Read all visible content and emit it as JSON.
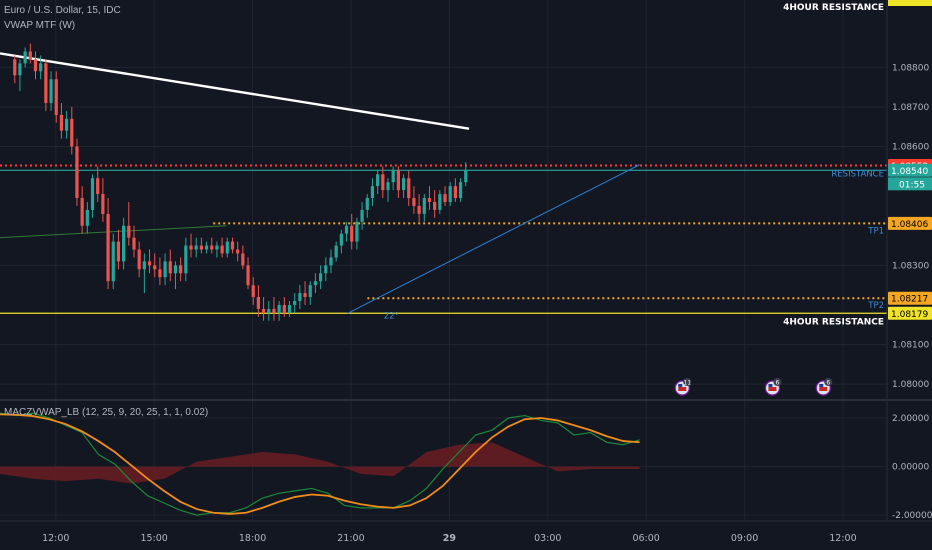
{
  "header": {
    "title": "Euro / U.S. Dollar, 15, IDC",
    "indicator": "VWAP MTF (W)",
    "oscillator": "MACZVWAP_LB (12, 25, 9, 20, 25, 1, 1, 0.02)"
  },
  "colors": {
    "background": "#131722",
    "grid": "#1f2430",
    "up": "#26a69a",
    "down": "#ef5350",
    "text": "#b2b5be",
    "yellow": "#f0e428",
    "orange": "#f5a623",
    "red_level": "#ff3b30",
    "trend_blue": "#2f7fd4"
  },
  "chart_data": [
    {
      "type": "candlestick",
      "title": "Euro / U.S. Dollar, 15, IDC",
      "ylim": [
        1.0796,
        1.0897
      ],
      "y_ticks": [
        1.08,
        1.081,
        1.083,
        1.086,
        1.087,
        1.088
      ],
      "x_ticks": [
        "12:00",
        "15:00",
        "18:00",
        "21:00",
        "29",
        "03:00",
        "06:00",
        "09:00",
        "12:00"
      ],
      "bar_times_hours": [
        10.75,
        24.5
      ],
      "ohlc": [
        [
          1.0882,
          1.0883,
          1.0876,
          1.0878
        ],
        [
          1.0878,
          1.0882,
          1.0874,
          1.0881
        ],
        [
          1.0881,
          1.0885,
          1.088,
          1.0884
        ],
        [
          1.0884,
          1.0886,
          1.0881,
          1.0882
        ],
        [
          1.0882,
          1.0884,
          1.0877,
          1.0879
        ],
        [
          1.0879,
          1.0883,
          1.0877,
          1.0881
        ],
        [
          1.0881,
          1.0882,
          1.0869,
          1.0871
        ],
        [
          1.0871,
          1.0879,
          1.0869,
          1.0877
        ],
        [
          1.0877,
          1.0879,
          1.0866,
          1.0868
        ],
        [
          1.0868,
          1.0871,
          1.0862,
          1.0864
        ],
        [
          1.0864,
          1.0869,
          1.0862,
          1.0867
        ],
        [
          1.0867,
          1.087,
          1.0858,
          1.086
        ],
        [
          1.086,
          1.0862,
          1.0845,
          1.0847
        ],
        [
          1.0847,
          1.085,
          1.0838,
          1.084
        ],
        [
          1.084,
          1.0846,
          1.0838,
          1.0844
        ],
        [
          1.0844,
          1.0853,
          1.0842,
          1.0852
        ],
        [
          1.0852,
          1.0855,
          1.0846,
          1.0848
        ],
        [
          1.0848,
          1.0852,
          1.0841,
          1.0843
        ],
        [
          1.0843,
          1.0847,
          1.0824,
          1.0826
        ],
        [
          1.0826,
          1.0838,
          1.0824,
          1.0836
        ],
        [
          1.0836,
          1.0839,
          1.0829,
          1.0831
        ],
        [
          1.0831,
          1.0842,
          1.0829,
          1.084
        ],
        [
          1.084,
          1.0846,
          1.0835,
          1.0837
        ],
        [
          1.0837,
          1.084,
          1.0832,
          1.0834
        ],
        [
          1.0834,
          1.0836,
          1.0827,
          1.0829
        ],
        [
          1.0829,
          1.0833,
          1.0823,
          1.0831
        ],
        [
          1.0831,
          1.0834,
          1.0828,
          1.083
        ],
        [
          1.083,
          1.0833,
          1.0827,
          1.0829
        ],
        [
          1.0829,
          1.0832,
          1.0825,
          1.0827
        ],
        [
          1.0827,
          1.0833,
          1.0825,
          1.0831
        ],
        [
          1.0831,
          1.0834,
          1.0826,
          1.0828
        ],
        [
          1.0828,
          1.0831,
          1.0824,
          1.083
        ],
        [
          1.083,
          1.0832,
          1.0826,
          1.0828
        ],
        [
          1.0828,
          1.0837,
          1.0826,
          1.0835
        ],
        [
          1.0835,
          1.0838,
          1.0832,
          1.0834
        ],
        [
          1.0834,
          1.0837,
          1.0832,
          1.0835
        ],
        [
          1.0835,
          1.0837,
          1.0833,
          1.0834
        ],
        [
          1.0834,
          1.0836,
          1.0833,
          1.0835
        ],
        [
          1.0835,
          1.0837,
          1.0833,
          1.0834
        ],
        [
          1.0834,
          1.0836,
          1.0832,
          1.0835
        ],
        [
          1.0835,
          1.0837,
          1.0832,
          1.0833
        ],
        [
          1.0833,
          1.0837,
          1.0832,
          1.0836
        ],
        [
          1.0836,
          1.0837,
          1.0833,
          1.0834
        ],
        [
          1.0834,
          1.0836,
          1.0831,
          1.0833
        ],
        [
          1.0833,
          1.0835,
          1.0829,
          1.083
        ],
        [
          1.083,
          1.0832,
          1.0824,
          1.0825
        ],
        [
          1.0825,
          1.0827,
          1.082,
          1.0822
        ],
        [
          1.0822,
          1.0825,
          1.0817,
          1.0819
        ],
        [
          1.0819,
          1.0822,
          1.0816,
          1.0818
        ],
        [
          1.0818,
          1.0821,
          1.0816,
          1.0819
        ],
        [
          1.0819,
          1.0822,
          1.0816,
          1.0818
        ],
        [
          1.0818,
          1.0821,
          1.0816,
          1.082
        ],
        [
          1.082,
          1.0822,
          1.0817,
          1.0818
        ],
        [
          1.0818,
          1.0821,
          1.0817,
          1.082
        ],
        [
          1.082,
          1.0823,
          1.0818,
          1.0821
        ],
        [
          1.0821,
          1.0825,
          1.0819,
          1.0823
        ],
        [
          1.0823,
          1.0826,
          1.082,
          1.0822
        ],
        [
          1.0822,
          1.0826,
          1.082,
          1.0825
        ],
        [
          1.0825,
          1.0828,
          1.0823,
          1.0826
        ],
        [
          1.0826,
          1.083,
          1.0824,
          1.0828
        ],
        [
          1.0828,
          1.0832,
          1.0826,
          1.083
        ],
        [
          1.083,
          1.0834,
          1.0828,
          1.0832
        ],
        [
          1.0832,
          1.0836,
          1.0831,
          1.0835
        ],
        [
          1.0835,
          1.0839,
          1.0833,
          1.0838
        ],
        [
          1.0838,
          1.0841,
          1.0836,
          1.084
        ],
        [
          1.084,
          1.0843,
          1.0834,
          1.0836
        ],
        [
          1.0836,
          1.0842,
          1.0834,
          1.0841
        ],
        [
          1.0841,
          1.0846,
          1.0839,
          1.0844
        ],
        [
          1.0844,
          1.0848,
          1.0842,
          1.0847
        ],
        [
          1.0847,
          1.0852,
          1.0845,
          1.085
        ],
        [
          1.085,
          1.0854,
          1.0848,
          1.0853
        ],
        [
          1.0853,
          1.0855,
          1.0847,
          1.0849
        ],
        [
          1.0849,
          1.0852,
          1.0846,
          1.0851
        ],
        [
          1.0851,
          1.0855,
          1.0849,
          1.0854
        ],
        [
          1.0854,
          1.0855,
          1.0847,
          1.0849
        ],
        [
          1.0849,
          1.0853,
          1.0847,
          1.0852
        ],
        [
          1.0852,
          1.0854,
          1.0845,
          1.0847
        ],
        [
          1.0847,
          1.085,
          1.0843,
          1.0845
        ],
        [
          1.0845,
          1.0848,
          1.0841,
          1.0843
        ],
        [
          1.0843,
          1.0848,
          1.0841,
          1.0847
        ],
        [
          1.0847,
          1.085,
          1.0844,
          1.0846
        ],
        [
          1.0846,
          1.0849,
          1.0842,
          1.0844
        ],
        [
          1.0844,
          1.0849,
          1.0843,
          1.0848
        ],
        [
          1.0848,
          1.085,
          1.0845,
          1.0846
        ],
        [
          1.0846,
          1.0851,
          1.0845,
          1.085
        ],
        [
          1.085,
          1.0852,
          1.0846,
          1.0847
        ],
        [
          1.0847,
          1.0852,
          1.0846,
          1.0851
        ],
        [
          1.0851,
          1.0856,
          1.085,
          1.0854
        ]
      ],
      "trendlines": [
        {
          "color": "#ffffff",
          "from": [
            10.3,
            1.08835
          ],
          "to": [
            24.6,
            1.08645
          ]
        },
        {
          "color": "#2f7fd4",
          "from": [
            20.9,
            1.08179
          ],
          "to": [
            29.8,
            1.08554
          ]
        }
      ],
      "vwap_segment": {
        "color": "#2e7d32",
        "from": [
          10.3,
          1.0837
        ],
        "to": [
          17.2,
          1.084
        ]
      },
      "levels": [
        {
          "price": 1.08552,
          "label": "1.08552",
          "color": "#ff3b30",
          "style": "dotted",
          "from": 10.3
        },
        {
          "price": 1.0854,
          "label": "1.08540",
          "color": "#26a69a",
          "style": "solid",
          "from": 10.3,
          "tag": "RESISTANCE"
        },
        {
          "price": 1.08406,
          "label": "1.08406",
          "color": "#f5a623",
          "style": "dotted",
          "from": 16.8,
          "tag": "TP1"
        },
        {
          "price": 1.08217,
          "label": "1.08217",
          "color": "#f5a623",
          "style": "dotted",
          "from": 21.5,
          "tag": "TP2"
        },
        {
          "price": 1.08179,
          "label": "1.08179",
          "color": "#f0e428",
          "style": "solid",
          "from": 10.3,
          "tag": "4HOUR RESISTANCE"
        }
      ],
      "top_label": "4HOUR RESISTANCE",
      "countdown": "01:55",
      "angle_label": "22°",
      "event_markers": [
        {
          "time": 31.1,
          "label": "11"
        },
        {
          "time": 33.85,
          "label": "6"
        },
        {
          "time": 35.4,
          "label": "6"
        }
      ]
    },
    {
      "type": "line",
      "title": "MACZVWAP_LB (12, 25, 9, 20, 25, 1, 1, 0.02)",
      "ylim": [
        -2.2,
        2.7
      ],
      "y_ticks": [
        "2.00000",
        "0.00000",
        "-2.00000"
      ],
      "y_tick_values": [
        2,
        0,
        -2
      ],
      "series": [
        {
          "color": "#1b8a3a",
          "values": [
            [
              10.3,
              2.2
            ],
            [
              10.8,
              2.1
            ],
            [
              11.3,
              2.2
            ],
            [
              11.8,
              2.0
            ],
            [
              12.3,
              1.7
            ],
            [
              12.8,
              1.4
            ],
            [
              13.3,
              0.5
            ],
            [
              13.8,
              0.1
            ],
            [
              14.3,
              -0.6
            ],
            [
              14.8,
              -1.2
            ],
            [
              15.3,
              -1.5
            ],
            [
              15.8,
              -1.8
            ],
            [
              16.3,
              -2.0
            ],
            [
              16.8,
              -1.9
            ],
            [
              17.3,
              -1.9
            ],
            [
              17.8,
              -1.7
            ],
            [
              18.3,
              -1.3
            ],
            [
              18.8,
              -1.1
            ],
            [
              19.3,
              -1.0
            ],
            [
              19.8,
              -0.9
            ],
            [
              20.3,
              -1.1
            ],
            [
              20.8,
              -1.6
            ],
            [
              21.3,
              -1.7
            ],
            [
              21.8,
              -1.7
            ],
            [
              22.3,
              -1.7
            ],
            [
              22.8,
              -1.4
            ],
            [
              23.3,
              -0.9
            ],
            [
              23.8,
              -0.1
            ],
            [
              24.3,
              0.6
            ],
            [
              24.8,
              1.3
            ],
            [
              25.3,
              1.5
            ],
            [
              25.8,
              2.0
            ],
            [
              26.3,
              2.1
            ],
            [
              26.8,
              1.9
            ],
            [
              27.3,
              1.8
            ],
            [
              27.8,
              1.3
            ],
            [
              28.3,
              1.4
            ],
            [
              28.8,
              1.0
            ],
            [
              29.3,
              0.9
            ],
            [
              29.8,
              1.1
            ]
          ]
        },
        {
          "color": "#f08c1a",
          "values": [
            [
              10.3,
              2.15
            ],
            [
              10.8,
              2.13
            ],
            [
              11.3,
              2.08
            ],
            [
              11.8,
              1.95
            ],
            [
              12.3,
              1.75
            ],
            [
              12.8,
              1.45
            ],
            [
              13.3,
              1.05
            ],
            [
              13.8,
              0.6
            ],
            [
              14.3,
              0.05
            ],
            [
              14.8,
              -0.5
            ],
            [
              15.3,
              -1.0
            ],
            [
              15.8,
              -1.45
            ],
            [
              16.3,
              -1.75
            ],
            [
              16.8,
              -1.9
            ],
            [
              17.3,
              -1.95
            ],
            [
              17.8,
              -1.9
            ],
            [
              18.3,
              -1.7
            ],
            [
              18.8,
              -1.45
            ],
            [
              19.3,
              -1.25
            ],
            [
              19.8,
              -1.15
            ],
            [
              20.3,
              -1.2
            ],
            [
              20.8,
              -1.4
            ],
            [
              21.3,
              -1.55
            ],
            [
              21.8,
              -1.65
            ],
            [
              22.3,
              -1.7
            ],
            [
              22.8,
              -1.6
            ],
            [
              23.3,
              -1.3
            ],
            [
              23.8,
              -0.8
            ],
            [
              24.3,
              -0.1
            ],
            [
              24.8,
              0.6
            ],
            [
              25.3,
              1.2
            ],
            [
              25.8,
              1.65
            ],
            [
              26.3,
              1.95
            ],
            [
              26.8,
              2.0
            ],
            [
              27.3,
              1.9
            ],
            [
              27.8,
              1.7
            ],
            [
              28.3,
              1.5
            ],
            [
              28.8,
              1.25
            ],
            [
              29.3,
              1.05
            ],
            [
              29.8,
              1.0
            ]
          ]
        }
      ],
      "histogram": {
        "color": "#6b1c22",
        "values": [
          [
            10.3,
            -0.3
          ],
          [
            11.3,
            -0.5
          ],
          [
            12.3,
            -0.6
          ],
          [
            13.3,
            -0.5
          ],
          [
            14.3,
            -0.7
          ],
          [
            15.3,
            -0.5
          ],
          [
            16.3,
            0.2
          ],
          [
            17.3,
            0.4
          ],
          [
            18.3,
            0.6
          ],
          [
            19.3,
            0.5
          ],
          [
            20.3,
            0.2
          ],
          [
            21.3,
            -0.3
          ],
          [
            22.3,
            -0.4
          ],
          [
            23.3,
            0.6
          ],
          [
            24.3,
            0.9
          ],
          [
            25.3,
            1.0
          ],
          [
            26.3,
            0.4
          ],
          [
            27.3,
            -0.2
          ],
          [
            28.3,
            -0.1
          ],
          [
            29.8,
            -0.1
          ]
        ]
      }
    }
  ]
}
